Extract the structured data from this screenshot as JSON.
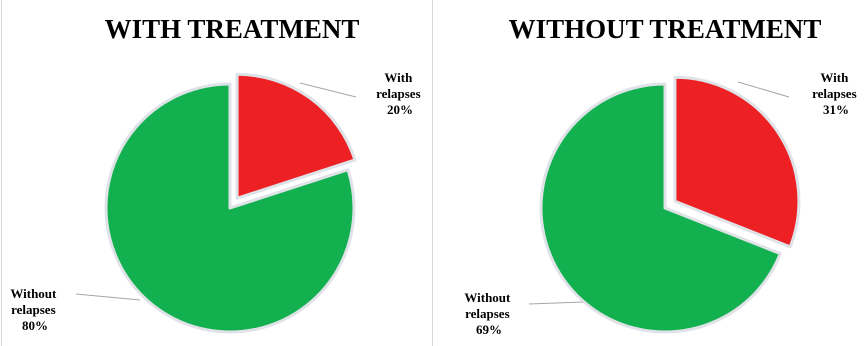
{
  "colors": {
    "with_relapses": "#ed2024",
    "without_relapses": "#12b04f",
    "leader": "#a6a6a6",
    "slice_border": "#dfe3e8"
  },
  "chart_data": [
    {
      "type": "pie",
      "title": "WITH TREATMENT",
      "slices": [
        {
          "label_lines": [
            "With",
            "relapses"
          ],
          "value": 20,
          "value_label": "20%",
          "color": "#ed2024",
          "exploded": true
        },
        {
          "label_lines": [
            "Without",
            "relapses"
          ],
          "value": 80,
          "value_label": "80%",
          "color": "#12b04f",
          "exploded": false
        }
      ]
    },
    {
      "type": "pie",
      "title": "WITHOUT TREATMENT",
      "slices": [
        {
          "label_lines": [
            "With",
            "relapses"
          ],
          "value": 31,
          "value_label": "31%",
          "color": "#ed2024",
          "exploded": true
        },
        {
          "label_lines": [
            "Without",
            "relapses"
          ],
          "value": 69,
          "value_label": "69%",
          "color": "#12b04f",
          "exploded": false
        }
      ]
    }
  ]
}
